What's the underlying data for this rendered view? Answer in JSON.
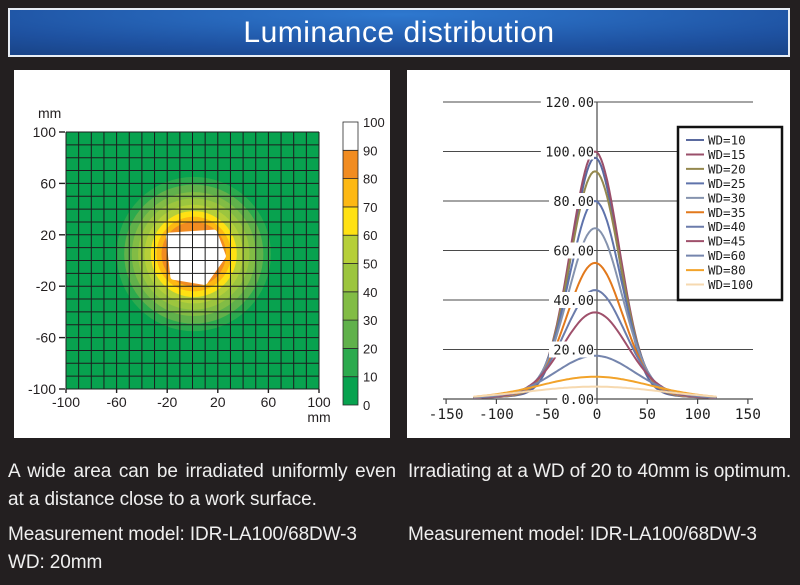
{
  "title": "Luminance distribution",
  "left_panel": {
    "caption": "A wide area can be irradiated uniformly even at a distance close to a work surface.",
    "model_line": "Measurement model: IDR-LA100/68DW-3",
    "wd_line": "WD: 20mm"
  },
  "right_panel": {
    "caption": "Irradiating at a WD of 20 to 40mm is optimum.",
    "model_line": "Measurement model: IDR-LA100/68DW-3"
  },
  "colors": {
    "page_background": "#231f20",
    "title_blue_center": "#2e78cf",
    "title_blue_edge": "#102c5b",
    "heatmap_base_green": "#08a24f",
    "heatmap_orange_ring": "#f18c21",
    "grid_line": "#1c1c1e",
    "text_light": "#efefef"
  },
  "chart_data": [
    {
      "type": "heatmap",
      "xlabel": "mm",
      "ylabel": "mm",
      "x_ticks": [
        -100,
        -60,
        -20,
        20,
        60,
        100
      ],
      "y_ticks": [
        100,
        60,
        20,
        -20,
        -60,
        -100
      ],
      "xlim": [
        -100,
        100
      ],
      "ylim": [
        -100,
        100
      ],
      "grid_cells": 20,
      "cell_size_mm": 10,
      "center_mm": [
        1,
        5
      ],
      "colorbar": {
        "ticks": [
          0,
          10,
          20,
          30,
          40,
          50,
          60,
          70,
          80,
          90,
          100
        ],
        "colors": [
          "#08a24f",
          "#2caa4e",
          "#60b14b",
          "#82bc45",
          "#9cc53e",
          "#b6cf39",
          "#ffe113",
          "#fdb813",
          "#f18c21",
          "#ffffff"
        ]
      },
      "rings": [
        {
          "min_level": 10,
          "radius_mm": 61
        },
        {
          "min_level": 20,
          "radius_mm": 55
        },
        {
          "min_level": 30,
          "radius_mm": 49
        },
        {
          "min_level": 40,
          "radius_mm": 44
        },
        {
          "min_level": 50,
          "radius_mm": 39
        },
        {
          "min_level": 60,
          "radius_mm": 34
        },
        {
          "min_level": 70,
          "radius_mm": 29.5
        },
        {
          "min_level": 80,
          "radius_mm": 25.5
        }
      ],
      "core": {
        "min_level": 90,
        "radius_mm": 20,
        "color": "#ffffff"
      }
    },
    {
      "type": "line",
      "x_ticks": [
        -150,
        -100,
        -50,
        0,
        50,
        100,
        150
      ],
      "y_ticks": [
        0,
        20,
        40,
        60,
        80,
        100,
        120
      ],
      "y_tick_labels": [
        "0.00",
        "20.00",
        "40.00",
        "60.00",
        "80.00",
        "100.00",
        "120.00"
      ],
      "xlim": [
        -150,
        150
      ],
      "ylim": [
        0,
        120
      ],
      "grid": "horizontal",
      "legend_position": "upper right",
      "curve_x_range": [
        -122,
        118
      ],
      "series": [
        {
          "name": "WD=10",
          "color": "#5a6a9f",
          "peak": 97.5,
          "sigma": 23
        },
        {
          "name": "WD=15",
          "color": "#9a4f6a",
          "peak": 100,
          "sigma": 24
        },
        {
          "name": "WD=20",
          "color": "#94884e",
          "peak": 92,
          "sigma": 24.5
        },
        {
          "name": "WD=25",
          "color": "#5f73ab",
          "peak": 80,
          "sigma": 25.5
        },
        {
          "name": "WD=30",
          "color": "#8593ae",
          "peak": 69,
          "sigma": 26.5
        },
        {
          "name": "WD=35",
          "color": "#e2791c",
          "peak": 55,
          "sigma": 27.5
        },
        {
          "name": "WD=40",
          "color": "#6b7cab",
          "peak": 44,
          "sigma": 29.5
        },
        {
          "name": "WD=45",
          "color": "#9f506b",
          "peak": 35,
          "sigma": 31.5
        },
        {
          "name": "WD=60",
          "color": "#7585ad",
          "peak": 17.5,
          "sigma": 38
        },
        {
          "name": "WD=80",
          "color": "#f2a32a",
          "peak": 9,
          "sigma": 52
        },
        {
          "name": "WD=100",
          "color": "#f6d9b0",
          "peak": 5,
          "sigma": 66
        }
      ]
    }
  ]
}
